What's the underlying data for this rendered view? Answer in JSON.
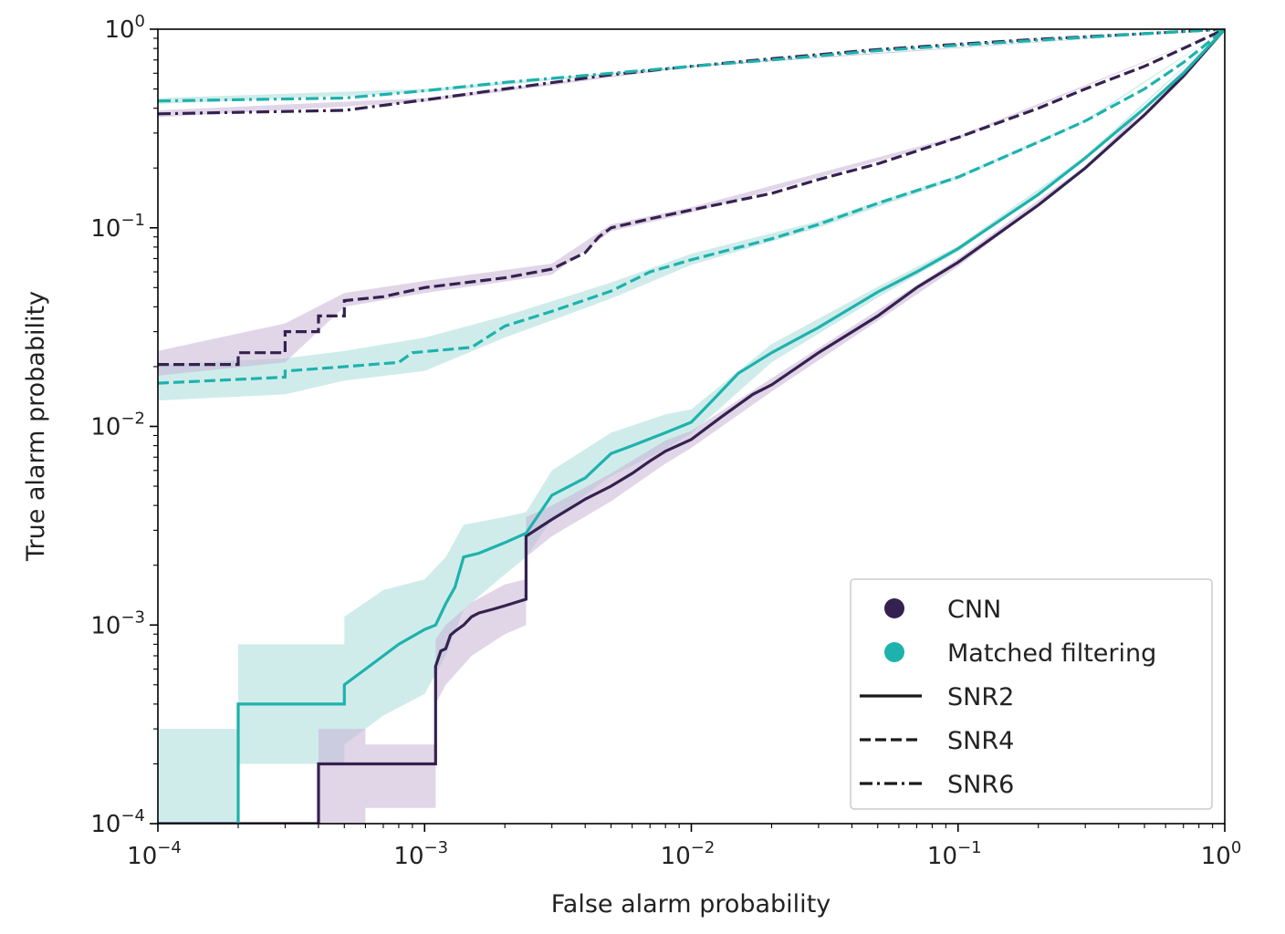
{
  "chart_data": {
    "type": "line",
    "title": "",
    "xlabel": "False alarm probability",
    "ylabel": "True alarm probability",
    "xscale": "log",
    "yscale": "log",
    "xlim": [
      0.0001,
      1
    ],
    "ylim": [
      0.0001,
      1
    ],
    "x_ticks": [
      {
        "value": 0.0001,
        "base": "10",
        "exp": "−4"
      },
      {
        "value": 0.001,
        "base": "10",
        "exp": "−3"
      },
      {
        "value": 0.01,
        "base": "10",
        "exp": "−2"
      },
      {
        "value": 0.1,
        "base": "10",
        "exp": "−1"
      },
      {
        "value": 1,
        "base": "10",
        "exp": "0"
      }
    ],
    "y_ticks": [
      {
        "value": 0.0001,
        "base": "10",
        "exp": "−4"
      },
      {
        "value": 0.001,
        "base": "10",
        "exp": "−3"
      },
      {
        "value": 0.01,
        "base": "10",
        "exp": "−2"
      },
      {
        "value": 0.1,
        "base": "10",
        "exp": "−1"
      },
      {
        "value": 1,
        "base": "10",
        "exp": "0"
      }
    ],
    "colors": {
      "cnn": "#35214f",
      "mf": "#1eb2ac"
    },
    "band_colors": {
      "cnn": "#c9b3d6",
      "mf": "#a8dcdb"
    },
    "legend": {
      "location": "lower right",
      "entries": [
        {
          "label": "CNN",
          "kind": "marker",
          "color_key": "cnn"
        },
        {
          "label": "Matched filtering",
          "kind": "marker",
          "color_key": "mf"
        },
        {
          "label": "SNR2",
          "kind": "line",
          "dash": "solid"
        },
        {
          "label": "SNR4",
          "kind": "line",
          "dash": "dashed"
        },
        {
          "label": "SNR6",
          "kind": "line",
          "dash": "dashdot"
        }
      ]
    },
    "series": [
      {
        "name": "CNN SNR2",
        "model": "CNN",
        "snr": "SNR2",
        "dash": "solid",
        "color_key": "cnn",
        "points": [
          [
            0.0001,
            0.0001
          ],
          [
            0.0004,
            0.0001
          ],
          [
            0.0004,
            0.0002
          ],
          [
            0.0011,
            0.0002
          ],
          [
            0.0011,
            0.00062
          ],
          [
            0.00115,
            0.00074
          ],
          [
            0.0012,
            0.00076
          ],
          [
            0.00125,
            0.00089
          ],
          [
            0.0013,
            0.00093
          ],
          [
            0.0014,
            0.001
          ],
          [
            0.0015,
            0.0011
          ],
          [
            0.0016,
            0.00115
          ],
          [
            0.0018,
            0.0012
          ],
          [
            0.002,
            0.00125
          ],
          [
            0.0022,
            0.0013
          ],
          [
            0.0024,
            0.00135
          ],
          [
            0.0024,
            0.0028
          ],
          [
            0.003,
            0.0034
          ],
          [
            0.004,
            0.0043
          ],
          [
            0.005,
            0.005
          ],
          [
            0.006,
            0.0058
          ],
          [
            0.007,
            0.0067
          ],
          [
            0.008,
            0.0075
          ],
          [
            0.01,
            0.0086
          ],
          [
            0.013,
            0.0112
          ],
          [
            0.017,
            0.0145
          ],
          [
            0.02,
            0.0162
          ],
          [
            0.03,
            0.0235
          ],
          [
            0.05,
            0.036
          ],
          [
            0.07,
            0.05
          ],
          [
            0.1,
            0.067
          ],
          [
            0.2,
            0.13
          ],
          [
            0.3,
            0.2
          ],
          [
            0.5,
            0.37
          ],
          [
            0.7,
            0.58
          ],
          [
            1,
            1
          ]
        ]
      },
      {
        "name": "MF SNR2",
        "model": "Matched filtering",
        "snr": "SNR2",
        "dash": "solid",
        "color_key": "mf",
        "points": [
          [
            0.0002,
            0.0001
          ],
          [
            0.0002,
            0.0004
          ],
          [
            0.0005,
            0.0004
          ],
          [
            0.0005,
            0.0005
          ],
          [
            0.0006,
            0.0006
          ],
          [
            0.0007,
            0.0007
          ],
          [
            0.0008,
            0.0008
          ],
          [
            0.001,
            0.00095
          ],
          [
            0.0011,
            0.001
          ],
          [
            0.0012,
            0.00128
          ],
          [
            0.0013,
            0.00155
          ],
          [
            0.0014,
            0.0022
          ],
          [
            0.0016,
            0.0023
          ],
          [
            0.002,
            0.0026
          ],
          [
            0.0024,
            0.0029
          ],
          [
            0.003,
            0.0045
          ],
          [
            0.004,
            0.0055
          ],
          [
            0.005,
            0.0073
          ],
          [
            0.006,
            0.008
          ],
          [
            0.008,
            0.0093
          ],
          [
            0.01,
            0.0105
          ],
          [
            0.012,
            0.0135
          ],
          [
            0.015,
            0.0185
          ],
          [
            0.02,
            0.0235
          ],
          [
            0.03,
            0.0315
          ],
          [
            0.05,
            0.0475
          ],
          [
            0.07,
            0.06
          ],
          [
            0.1,
            0.0785
          ],
          [
            0.2,
            0.147
          ],
          [
            0.3,
            0.225
          ],
          [
            0.5,
            0.4
          ],
          [
            0.7,
            0.6
          ],
          [
            1,
            1
          ]
        ]
      },
      {
        "name": "CNN SNR4",
        "model": "CNN",
        "snr": "SNR4",
        "dash": "dashed",
        "color_key": "cnn",
        "points": [
          [
            0.0001,
            0.0205
          ],
          [
            0.0002,
            0.0205
          ],
          [
            0.0002,
            0.0235
          ],
          [
            0.0003,
            0.0235
          ],
          [
            0.0003,
            0.03
          ],
          [
            0.0004,
            0.03
          ],
          [
            0.0004,
            0.036
          ],
          [
            0.0005,
            0.036
          ],
          [
            0.0005,
            0.043
          ],
          [
            0.0007,
            0.045
          ],
          [
            0.001,
            0.05
          ],
          [
            0.002,
            0.056
          ],
          [
            0.003,
            0.062
          ],
          [
            0.004,
            0.075
          ],
          [
            0.0045,
            0.09
          ],
          [
            0.005,
            0.1
          ],
          [
            0.007,
            0.111
          ],
          [
            0.01,
            0.123
          ],
          [
            0.02,
            0.149
          ],
          [
            0.03,
            0.175
          ],
          [
            0.05,
            0.21
          ],
          [
            0.1,
            0.285
          ],
          [
            0.2,
            0.4
          ],
          [
            0.3,
            0.5
          ],
          [
            0.5,
            0.65
          ],
          [
            0.7,
            0.8
          ],
          [
            1,
            1
          ]
        ]
      },
      {
        "name": "MF SNR4",
        "model": "Matched filtering",
        "snr": "SNR4",
        "dash": "dashed",
        "color_key": "mf",
        "points": [
          [
            0.0001,
            0.0165
          ],
          [
            0.0003,
            0.0177
          ],
          [
            0.0003,
            0.019
          ],
          [
            0.0005,
            0.02
          ],
          [
            0.0008,
            0.021
          ],
          [
            0.0009,
            0.0235
          ],
          [
            0.0015,
            0.025
          ],
          [
            0.002,
            0.032
          ],
          [
            0.003,
            0.038
          ],
          [
            0.005,
            0.048
          ],
          [
            0.007,
            0.06
          ],
          [
            0.01,
            0.069
          ],
          [
            0.02,
            0.088
          ],
          [
            0.03,
            0.104
          ],
          [
            0.05,
            0.133
          ],
          [
            0.1,
            0.18
          ],
          [
            0.2,
            0.27
          ],
          [
            0.3,
            0.345
          ],
          [
            0.5,
            0.5
          ],
          [
            0.7,
            0.68
          ],
          [
            1,
            1
          ]
        ]
      },
      {
        "name": "CNN SNR6",
        "model": "CNN",
        "snr": "SNR6",
        "dash": "dashdot",
        "color_key": "cnn",
        "points": [
          [
            0.0001,
            0.375
          ],
          [
            0.0005,
            0.39
          ],
          [
            0.001,
            0.44
          ],
          [
            0.002,
            0.5
          ],
          [
            0.005,
            0.59
          ],
          [
            0.01,
            0.65
          ],
          [
            0.02,
            0.71
          ],
          [
            0.05,
            0.79
          ],
          [
            0.1,
            0.84
          ],
          [
            0.2,
            0.89
          ],
          [
            0.5,
            0.95
          ],
          [
            1,
            1
          ]
        ]
      },
      {
        "name": "MF SNR6",
        "model": "Matched filtering",
        "snr": "SNR6",
        "dash": "dashdot",
        "color_key": "mf",
        "points": [
          [
            0.0001,
            0.435
          ],
          [
            0.0005,
            0.45
          ],
          [
            0.001,
            0.49
          ],
          [
            0.002,
            0.54
          ],
          [
            0.005,
            0.6
          ],
          [
            0.01,
            0.65
          ],
          [
            0.02,
            0.7
          ],
          [
            0.05,
            0.78
          ],
          [
            0.1,
            0.83
          ],
          [
            0.2,
            0.88
          ],
          [
            0.5,
            0.95
          ],
          [
            1,
            1
          ]
        ]
      }
    ],
    "bands": [
      {
        "name": "MF SNR2 uncertainty",
        "color_key": "mf",
        "points": [
          [
            0.0001,
            0.0001,
            0.0003
          ],
          [
            0.0002,
            0.0001,
            0.0003
          ],
          [
            0.0002,
            0.0002,
            0.0008
          ],
          [
            0.0005,
            0.0002,
            0.0008
          ],
          [
            0.0005,
            0.00025,
            0.0011
          ],
          [
            0.0006,
            0.0003,
            0.0013
          ],
          [
            0.0007,
            0.00035,
            0.0015
          ],
          [
            0.001,
            0.00045,
            0.0017
          ],
          [
            0.0012,
            0.0007,
            0.0022
          ],
          [
            0.0014,
            0.0012,
            0.0032
          ],
          [
            0.002,
            0.0018,
            0.0035
          ],
          [
            0.0024,
            0.0022,
            0.0037
          ],
          [
            0.003,
            0.0034,
            0.006
          ],
          [
            0.005,
            0.0056,
            0.0093
          ],
          [
            0.008,
            0.0077,
            0.0115
          ],
          [
            0.01,
            0.0092,
            0.0122
          ],
          [
            0.02,
            0.021,
            0.026
          ],
          [
            0.05,
            0.0445,
            0.0505
          ],
          [
            0.1,
            0.076,
            0.081
          ],
          [
            0.3,
            0.22,
            0.23
          ],
          [
            1,
            1,
            1
          ]
        ]
      },
      {
        "name": "CNN SNR2 uncertainty",
        "color_key": "cnn",
        "points": [
          [
            0.0004,
            0.0001,
            0.0003
          ],
          [
            0.0006,
            0.0001,
            0.0003
          ],
          [
            0.0006,
            0.00012,
            0.00025
          ],
          [
            0.0011,
            0.00012,
            0.00025
          ],
          [
            0.0011,
            0.0004,
            0.00085
          ],
          [
            0.0012,
            0.0005,
            0.001
          ],
          [
            0.0015,
            0.0007,
            0.0013
          ],
          [
            0.002,
            0.0009,
            0.0016
          ],
          [
            0.0024,
            0.001,
            0.0017
          ],
          [
            0.0024,
            0.0022,
            0.0035
          ],
          [
            0.003,
            0.0028,
            0.004
          ],
          [
            0.005,
            0.0042,
            0.0058
          ],
          [
            0.008,
            0.0065,
            0.0085
          ],
          [
            0.01,
            0.0078,
            0.0095
          ],
          [
            0.02,
            0.015,
            0.0175
          ],
          [
            0.05,
            0.034,
            0.0385
          ],
          [
            0.1,
            0.064,
            0.07
          ],
          [
            0.3,
            0.195,
            0.205
          ],
          [
            1,
            1,
            1
          ]
        ]
      },
      {
        "name": "MF SNR4 uncertainty",
        "color_key": "mf",
        "points": [
          [
            0.0001,
            0.0135,
            0.0205
          ],
          [
            0.0003,
            0.0145,
            0.022
          ],
          [
            0.0005,
            0.017,
            0.024
          ],
          [
            0.001,
            0.019,
            0.028
          ],
          [
            0.002,
            0.028,
            0.036
          ],
          [
            0.005,
            0.044,
            0.053
          ],
          [
            0.01,
            0.065,
            0.074
          ],
          [
            0.03,
            0.1,
            0.108
          ],
          [
            0.1,
            0.176,
            0.184
          ],
          [
            0.3,
            0.34,
            0.35
          ],
          [
            1,
            1,
            1
          ]
        ]
      },
      {
        "name": "CNN SNR4 uncertainty",
        "color_key": "cnn",
        "points": [
          [
            0.0001,
            0.018,
            0.024
          ],
          [
            0.0003,
            0.021,
            0.033
          ],
          [
            0.0005,
            0.04,
            0.047
          ],
          [
            0.001,
            0.047,
            0.054
          ],
          [
            0.003,
            0.058,
            0.066
          ],
          [
            0.005,
            0.096,
            0.104
          ],
          [
            0.01,
            0.119,
            0.127
          ],
          [
            0.1,
            0.28,
            0.29
          ],
          [
            1,
            1,
            1
          ]
        ]
      },
      {
        "name": "MF SNR6 uncertainty",
        "color_key": "mf",
        "points": [
          [
            0.0001,
            0.42,
            0.45
          ],
          [
            0.001,
            0.48,
            0.5
          ],
          [
            0.01,
            0.645,
            0.655
          ],
          [
            1,
            1,
            1
          ]
        ]
      },
      {
        "name": "CNN SNR6 uncertainty",
        "color_key": "cnn",
        "points": [
          [
            0.0001,
            0.36,
            0.39
          ],
          [
            0.001,
            0.43,
            0.45
          ],
          [
            0.01,
            0.645,
            0.655
          ],
          [
            1,
            1,
            1
          ]
        ]
      }
    ]
  }
}
